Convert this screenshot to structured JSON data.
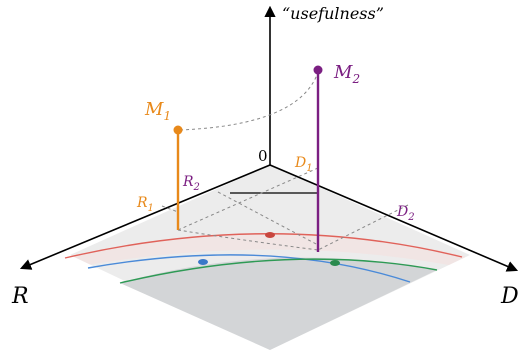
{
  "labels": {
    "z_axis": "“usefulness”",
    "origin": "0",
    "left_axis": "R",
    "right_axis": "D",
    "m1": {
      "main": "M",
      "sub": "1"
    },
    "m2": {
      "main": "M",
      "sub": "2"
    },
    "r1": {
      "main": "R",
      "sub": "1"
    },
    "r2": {
      "main": "R",
      "sub": "2"
    },
    "d1": {
      "main": "D",
      "sub": "1"
    },
    "d2": {
      "main": "D",
      "sub": "2"
    }
  },
  "colors": {
    "m1": "#e8891a",
    "m2": "#7b1f82",
    "red_curve": "#e0625a",
    "blue_curve": "#4a8ad8",
    "green_curve": "#2e9a55",
    "plane_light": "#ebebeb",
    "plane_dark": "#d2d4d6",
    "dashed": "#888888"
  }
}
